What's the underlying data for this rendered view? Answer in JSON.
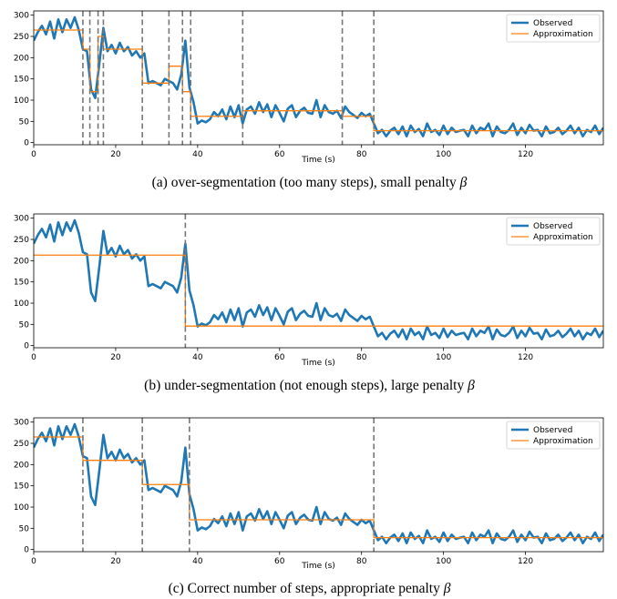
{
  "chart_data": [
    {
      "type": "line",
      "caption_main": "(a) over-segmentation (too many steps), small penalty ",
      "caption_symbol": "β",
      "xlabel": "Time (s)",
      "ylabel": "",
      "xlim": [
        0,
        139
      ],
      "ylim": [
        -5,
        310
      ],
      "xticks": [
        0,
        20,
        40,
        60,
        80,
        100,
        120
      ],
      "yticks": [
        0,
        50,
        100,
        150,
        200,
        250,
        300
      ],
      "legend": {
        "position": "top-right",
        "entries": [
          "Observed",
          "Approximation"
        ]
      },
      "change_points": [
        12,
        13.7,
        15.7,
        17,
        26.5,
        33,
        36.3,
        38.3,
        51,
        75.3,
        83
      ],
      "approximation": [
        {
          "x0": 0,
          "x1": 12,
          "y": 265
        },
        {
          "x0": 12,
          "x1": 13.7,
          "y": 220
        },
        {
          "x0": 13.7,
          "x1": 15.7,
          "y": 120
        },
        {
          "x0": 15.7,
          "x1": 17,
          "y": 250
        },
        {
          "x0": 17,
          "x1": 26.5,
          "y": 220
        },
        {
          "x0": 26.5,
          "x1": 33,
          "y": 140
        },
        {
          "x0": 33,
          "x1": 36.3,
          "y": 180
        },
        {
          "x0": 36.3,
          "x1": 38.3,
          "y": 120
        },
        {
          "x0": 38.3,
          "x1": 51,
          "y": 62
        },
        {
          "x0": 51,
          "x1": 75.3,
          "y": 75
        },
        {
          "x0": 75.3,
          "x1": 83,
          "y": 62
        },
        {
          "x0": 83,
          "x1": 139,
          "y": 28
        }
      ]
    },
    {
      "type": "line",
      "caption_main": "(b) under-segmentation (not enough steps), large penalty ",
      "caption_symbol": "β",
      "xlabel": "Time (s)",
      "ylabel": "",
      "xlim": [
        0,
        139
      ],
      "ylim": [
        -5,
        310
      ],
      "xticks": [
        0,
        20,
        40,
        60,
        80,
        100,
        120
      ],
      "yticks": [
        0,
        50,
        100,
        150,
        200,
        250,
        300
      ],
      "legend": {
        "position": "top-right",
        "entries": [
          "Observed",
          "Approximation"
        ]
      },
      "change_points": [
        37
      ],
      "approximation": [
        {
          "x0": 0,
          "x1": 37,
          "y": 213
        },
        {
          "x0": 37,
          "x1": 139,
          "y": 46
        }
      ]
    },
    {
      "type": "line",
      "caption_main": "(c) Correct number of steps, appropriate penalty ",
      "caption_symbol": "β",
      "xlabel": "Time (s)",
      "ylabel": "",
      "xlim": [
        0,
        139
      ],
      "ylim": [
        -5,
        310
      ],
      "xticks": [
        0,
        20,
        40,
        60,
        80,
        100,
        120
      ],
      "yticks": [
        0,
        50,
        100,
        150,
        200,
        250,
        300
      ],
      "legend": {
        "position": "top-right",
        "entries": [
          "Observed",
          "Approximation"
        ]
      },
      "change_points": [
        12,
        26.5,
        38,
        83
      ],
      "approximation": [
        {
          "x0": 0,
          "x1": 12,
          "y": 265
        },
        {
          "x0": 12,
          "x1": 26.5,
          "y": 210
        },
        {
          "x0": 26.5,
          "x1": 38,
          "y": 153
        },
        {
          "x0": 38,
          "x1": 83,
          "y": 70
        },
        {
          "x0": 83,
          "x1": 139,
          "y": 28
        }
      ]
    }
  ],
  "observed_series": {
    "name": "Observed",
    "x": [
      0,
      1,
      2,
      3,
      4,
      5,
      6,
      7,
      8,
      9,
      10,
      11,
      12,
      13,
      14,
      15,
      16,
      17,
      18,
      19,
      20,
      21,
      22,
      23,
      24,
      25,
      26,
      27,
      28,
      29,
      30,
      31,
      32,
      33,
      34,
      35,
      36,
      37,
      38,
      39,
      40,
      41,
      42,
      43,
      44,
      45,
      46,
      47,
      48,
      49,
      50,
      51,
      52,
      53,
      54,
      55,
      56,
      57,
      58,
      59,
      60,
      61,
      62,
      63,
      64,
      65,
      66,
      67,
      68,
      69,
      70,
      71,
      72,
      73,
      74,
      75,
      76,
      77,
      78,
      79,
      80,
      81,
      82,
      83,
      84,
      85,
      86,
      87,
      88,
      89,
      90,
      91,
      92,
      93,
      94,
      95,
      96,
      97,
      98,
      99,
      100,
      101,
      102,
      103,
      104,
      105,
      106,
      107,
      108,
      109,
      110,
      111,
      112,
      113,
      114,
      115,
      116,
      117,
      118,
      119,
      120,
      121,
      122,
      123,
      124,
      125,
      126,
      127,
      128,
      129,
      130,
      131,
      132,
      133,
      134,
      135,
      136,
      137,
      138,
      139
    ],
    "y": [
      240,
      260,
      275,
      255,
      285,
      245,
      290,
      260,
      290,
      270,
      295,
      265,
      220,
      215,
      125,
      105,
      185,
      270,
      215,
      230,
      210,
      235,
      215,
      225,
      205,
      215,
      200,
      210,
      140,
      145,
      140,
      135,
      150,
      145,
      140,
      125,
      160,
      240,
      130,
      95,
      45,
      52,
      48,
      55,
      72,
      62,
      78,
      55,
      85,
      60,
      88,
      45,
      78,
      85,
      68,
      95,
      72,
      90,
      60,
      88,
      70,
      50,
      80,
      88,
      60,
      75,
      82,
      70,
      68,
      100,
      60,
      88,
      72,
      68,
      75,
      58,
      85,
      72,
      65,
      58,
      70,
      62,
      68,
      45,
      22,
      30,
      15,
      28,
      35,
      20,
      38,
      15,
      40,
      25,
      32,
      15,
      45,
      25,
      30,
      18,
      40,
      20,
      35,
      25,
      28,
      30,
      15,
      40,
      22,
      35,
      30,
      45,
      15,
      38,
      25,
      22,
      30,
      45,
      18,
      35,
      22,
      42,
      28,
      30,
      15,
      38,
      22,
      25,
      35,
      20,
      28,
      40,
      22,
      35,
      15,
      30,
      25,
      40,
      20,
      35
    ]
  },
  "observed_label": "Observed",
  "approximation_label": "Approximation"
}
